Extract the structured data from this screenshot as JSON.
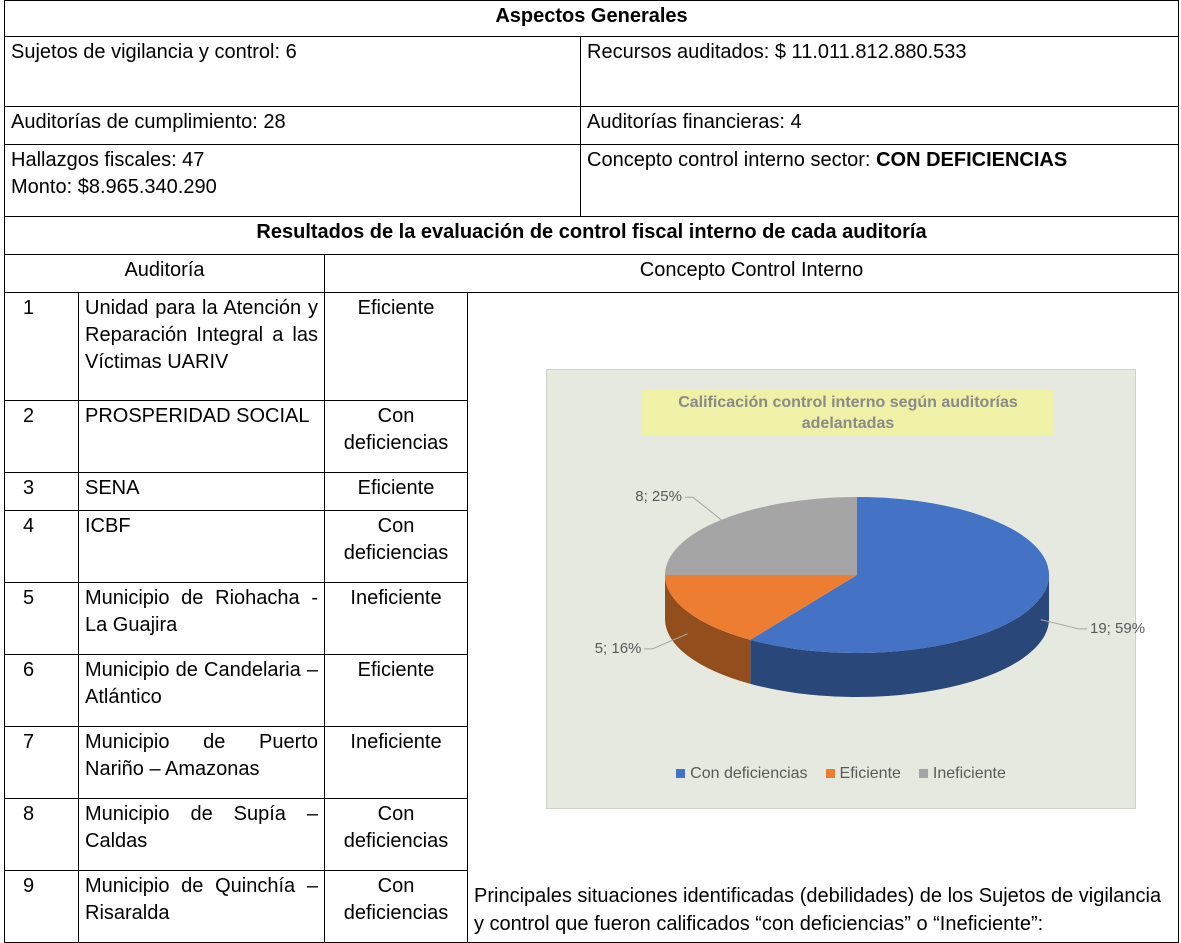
{
  "header": {
    "title": "Aspectos Generales"
  },
  "general": [
    [
      "Sujetos de vigilancia y control: 6",
      "Recursos auditados: $ 11.011.812.880.533"
    ],
    [
      "Auditorías de cumplimiento: 28",
      "Auditorías financieras: 4"
    ]
  ],
  "findings": {
    "lines": [
      "Hallazgos fiscales: 47",
      "Monto: $8.965.340.290"
    ],
    "concept_label": "Concepto control interno sector:",
    "concept_value": "CON DEFICIENCIAS"
  },
  "results": {
    "title": "Resultados de la evaluación de control fiscal interno de cada auditoría",
    "headers": [
      "Auditoría",
      "Concepto Control Interno"
    ],
    "rows": [
      [
        "1",
        "Unidad para la Atención y Reparación Integral a las Víctimas UARIV",
        "Eficiente"
      ],
      [
        "2",
        "PROSPERIDAD SOCIAL",
        "Con deficiencias"
      ],
      [
        "3",
        "SENA",
        "Eficiente"
      ],
      [
        "4",
        "ICBF",
        "Con deficiencias"
      ],
      [
        "5",
        "Municipio de Riohacha - La Guajira",
        "Ineficiente"
      ],
      [
        "6",
        "Municipio de Candelaria – Atlántico",
        "Eficiente"
      ],
      [
        "7",
        "Municipio de Puerto Nariño – Amazonas",
        "Ineficiente"
      ],
      [
        "8",
        "Municipio de Supía – Caldas",
        "Con deficiencias"
      ],
      [
        "9",
        "Municipio de Quinchía – Risaralda",
        "Con deficiencias"
      ]
    ]
  },
  "chart_data": {
    "type": "pie",
    "title": "Calificación control interno según auditorías adelantadas",
    "categories": [
      "Con deficiencias",
      "Eficiente",
      "Ineficiente"
    ],
    "values": [
      19,
      5,
      8
    ],
    "value_labels": [
      "19; 59%",
      "5; 16%",
      "8; 25%"
    ],
    "colors": [
      "#4472c4",
      "#ed7d31",
      "#a5a5a5"
    ],
    "legend": "bottom"
  },
  "note": "Principales situaciones identificadas (debilidades) de los Sujetos de vigilancia y control que fueron calificados “con deficiencias” o “Ineficiente”:"
}
